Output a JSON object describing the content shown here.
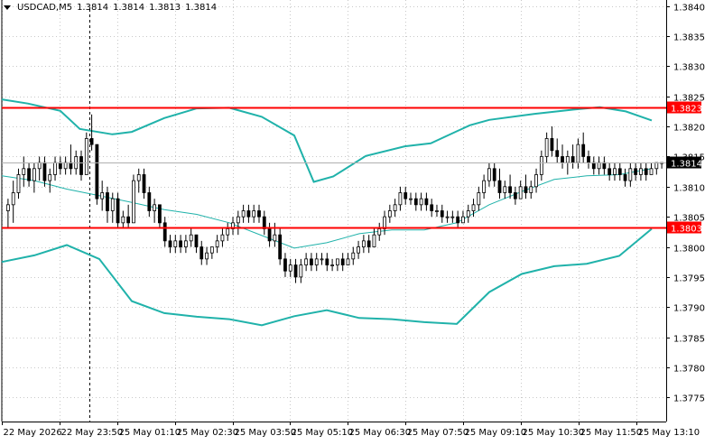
{
  "header": {
    "symbol": "USDCAD,M5",
    "open": "1.3814",
    "high": "1.3814",
    "low": "1.3813",
    "close": "1.3814"
  },
  "colors": {
    "background": "#ffffff",
    "grid": "#c8c8c8",
    "candle": "#000000",
    "bollinger": "#20b2aa",
    "level_line": "#ff0000",
    "price_tag_bg": "#000000",
    "price_tag_fg": "#ffffff"
  },
  "chart_data": {
    "type": "candlestick",
    "symbol": "USDCAD",
    "timeframe": "M5",
    "ylim": [
      1.3771,
      1.3841
    ],
    "y_ticks": [
      "1.3840",
      "1.3835",
      "1.3830",
      "1.3825",
      "1.3820",
      "1.3815",
      "1.3810",
      "1.3805",
      "1.3800",
      "1.3795",
      "1.3790",
      "1.3785",
      "1.3780",
      "1.3775"
    ],
    "x_ticks": [
      "22 May 2026",
      "22 May 23:50",
      "25 May 01:10",
      "25 May 02:30",
      "25 May 03:50",
      "25 May 05:10",
      "25 May 06:30",
      "25 May 07:50",
      "25 May 09:10",
      "25 May 10:30",
      "25 May 11:50",
      "25 May 13:10"
    ],
    "horizontal_levels": [
      {
        "label": "1.3823",
        "value": 1.38232
      },
      {
        "label": "1.3803",
        "value": 1.38032
      }
    ],
    "current_price_label": "1.3814",
    "current_price": 1.3814,
    "session_separator_index": 16,
    "candles": [
      [
        1.3806,
        1.3808,
        1.3803,
        1.3807
      ],
      [
        1.3807,
        1.3811,
        1.3804,
        1.3809
      ],
      [
        1.3809,
        1.3813,
        1.3808,
        1.3812
      ],
      [
        1.3812,
        1.3815,
        1.381,
        1.3813
      ],
      [
        1.3813,
        1.3814,
        1.381,
        1.3811
      ],
      [
        1.3811,
        1.3814,
        1.3809,
        1.3813
      ],
      [
        1.3813,
        1.3815,
        1.3811,
        1.3814
      ],
      [
        1.3814,
        1.3815,
        1.381,
        1.3811
      ],
      [
        1.3811,
        1.3813,
        1.3809,
        1.3812
      ],
      [
        1.3812,
        1.3815,
        1.3811,
        1.3814
      ],
      [
        1.3814,
        1.3815,
        1.3812,
        1.3813
      ],
      [
        1.3813,
        1.3815,
        1.3812,
        1.3814
      ],
      [
        1.3814,
        1.3817,
        1.3812,
        1.3813
      ],
      [
        1.3813,
        1.3816,
        1.3812,
        1.3815
      ],
      [
        1.3815,
        1.3816,
        1.3811,
        1.3812
      ],
      [
        1.3812,
        1.3819,
        1.3812,
        1.3818
      ],
      [
        1.3818,
        1.3822,
        1.3816,
        1.3817
      ],
      [
        1.3817,
        1.3817,
        1.3807,
        1.3808
      ],
      [
        1.3808,
        1.3811,
        1.3806,
        1.3809
      ],
      [
        1.3809,
        1.381,
        1.3804,
        1.3806
      ],
      [
        1.3806,
        1.3809,
        1.3804,
        1.3808
      ],
      [
        1.3808,
        1.3809,
        1.3803,
        1.3804
      ],
      [
        1.3804,
        1.3806,
        1.3803,
        1.3805
      ],
      [
        1.3805,
        1.3807,
        1.3803,
        1.3804
      ],
      [
        1.3804,
        1.3812,
        1.3804,
        1.3811
      ],
      [
        1.3811,
        1.3813,
        1.3809,
        1.3812
      ],
      [
        1.3812,
        1.3813,
        1.3808,
        1.3809
      ],
      [
        1.3809,
        1.381,
        1.3805,
        1.3806
      ],
      [
        1.3806,
        1.3808,
        1.3804,
        1.3807
      ],
      [
        1.3807,
        1.3807,
        1.3803,
        1.3804
      ],
      [
        1.3804,
        1.3805,
        1.38,
        1.3801
      ],
      [
        1.3801,
        1.3802,
        1.3799,
        1.38
      ],
      [
        1.38,
        1.3802,
        1.3799,
        1.3801
      ],
      [
        1.3801,
        1.3802,
        1.3799,
        1.38
      ],
      [
        1.38,
        1.3802,
        1.3799,
        1.3801
      ],
      [
        1.3801,
        1.3803,
        1.38,
        1.3802
      ],
      [
        1.3802,
        1.3802,
        1.3799,
        1.38
      ],
      [
        1.38,
        1.3801,
        1.3797,
        1.3798
      ],
      [
        1.3798,
        1.38,
        1.3797,
        1.3799
      ],
      [
        1.3799,
        1.38,
        1.3798,
        1.38
      ],
      [
        1.38,
        1.3802,
        1.3799,
        1.3801
      ],
      [
        1.3801,
        1.3803,
        1.38,
        1.3802
      ],
      [
        1.3802,
        1.3804,
        1.3801,
        1.3803
      ],
      [
        1.3803,
        1.3805,
        1.3802,
        1.3804
      ],
      [
        1.3804,
        1.3806,
        1.3802,
        1.3805
      ],
      [
        1.3805,
        1.3807,
        1.3804,
        1.3806
      ],
      [
        1.3806,
        1.3807,
        1.3804,
        1.3805
      ],
      [
        1.3805,
        1.3807,
        1.3804,
        1.3806
      ],
      [
        1.3806,
        1.3807,
        1.3804,
        1.3805
      ],
      [
        1.3805,
        1.3806,
        1.3802,
        1.3803
      ],
      [
        1.3803,
        1.3804,
        1.38,
        1.3801
      ],
      [
        1.3801,
        1.3804,
        1.38,
        1.3802
      ],
      [
        1.3802,
        1.3803,
        1.3797,
        1.3798
      ],
      [
        1.3798,
        1.3799,
        1.3795,
        1.3796
      ],
      [
        1.3796,
        1.3798,
        1.3795,
        1.3797
      ],
      [
        1.3797,
        1.3798,
        1.3794,
        1.3795
      ],
      [
        1.3795,
        1.3798,
        1.3794,
        1.3797
      ],
      [
        1.3797,
        1.3799,
        1.3796,
        1.3798
      ],
      [
        1.3798,
        1.3799,
        1.3796,
        1.3797
      ],
      [
        1.3797,
        1.3799,
        1.3796,
        1.3798
      ],
      [
        1.3798,
        1.3799,
        1.3797,
        1.3798
      ],
      [
        1.3798,
        1.3799,
        1.3796,
        1.3797
      ],
      [
        1.3797,
        1.3798,
        1.3796,
        1.3797
      ],
      [
        1.3797,
        1.3798,
        1.3796,
        1.3798
      ],
      [
        1.3798,
        1.3799,
        1.3796,
        1.3797
      ],
      [
        1.3797,
        1.3799,
        1.3797,
        1.3798
      ],
      [
        1.3798,
        1.38,
        1.3797,
        1.3799
      ],
      [
        1.3799,
        1.3801,
        1.3798,
        1.38
      ],
      [
        1.38,
        1.3802,
        1.3799,
        1.3801
      ],
      [
        1.3801,
        1.3802,
        1.3799,
        1.38
      ],
      [
        1.38,
        1.3803,
        1.38,
        1.3802
      ],
      [
        1.3802,
        1.3804,
        1.3801,
        1.3803
      ],
      [
        1.3803,
        1.3806,
        1.3802,
        1.3805
      ],
      [
        1.3805,
        1.3807,
        1.3804,
        1.3806
      ],
      [
        1.3806,
        1.3808,
        1.3805,
        1.3807
      ],
      [
        1.3807,
        1.381,
        1.3806,
        1.3809
      ],
      [
        1.3809,
        1.381,
        1.3807,
        1.3808
      ],
      [
        1.3808,
        1.3809,
        1.3807,
        1.3808
      ],
      [
        1.3808,
        1.3809,
        1.3806,
        1.3807
      ],
      [
        1.3807,
        1.3809,
        1.3806,
        1.3808
      ],
      [
        1.3808,
        1.3809,
        1.3806,
        1.3807
      ],
      [
        1.3807,
        1.3808,
        1.3805,
        1.3806
      ],
      [
        1.3806,
        1.3807,
        1.3805,
        1.3806
      ],
      [
        1.3806,
        1.3807,
        1.3804,
        1.3805
      ],
      [
        1.3805,
        1.3806,
        1.3804,
        1.3805
      ],
      [
        1.3805,
        1.3806,
        1.3804,
        1.3805
      ],
      [
        1.3805,
        1.3806,
        1.3803,
        1.3804
      ],
      [
        1.3804,
        1.3806,
        1.3804,
        1.3805
      ],
      [
        1.3805,
        1.3807,
        1.3804,
        1.3806
      ],
      [
        1.3806,
        1.3808,
        1.3805,
        1.3807
      ],
      [
        1.3807,
        1.381,
        1.3806,
        1.3809
      ],
      [
        1.3809,
        1.3812,
        1.3808,
        1.3811
      ],
      [
        1.3811,
        1.3814,
        1.381,
        1.3813
      ],
      [
        1.3813,
        1.3814,
        1.381,
        1.3811
      ],
      [
        1.3811,
        1.3813,
        1.3808,
        1.3809
      ],
      [
        1.3809,
        1.3811,
        1.3808,
        1.381
      ],
      [
        1.381,
        1.3812,
        1.3808,
        1.3809
      ],
      [
        1.3809,
        1.381,
        1.3807,
        1.3808
      ],
      [
        1.3808,
        1.3811,
        1.3808,
        1.381
      ],
      [
        1.381,
        1.3812,
        1.3808,
        1.3809
      ],
      [
        1.3809,
        1.3811,
        1.3808,
        1.381
      ],
      [
        1.381,
        1.3813,
        1.3809,
        1.3812
      ],
      [
        1.3812,
        1.3816,
        1.3811,
        1.3815
      ],
      [
        1.3815,
        1.3819,
        1.3814,
        1.3818
      ],
      [
        1.3818,
        1.382,
        1.3815,
        1.3816
      ],
      [
        1.3816,
        1.3818,
        1.3814,
        1.3815
      ],
      [
        1.3815,
        1.3817,
        1.3813,
        1.3814
      ],
      [
        1.3814,
        1.3816,
        1.3812,
        1.3815
      ],
      [
        1.3815,
        1.3817,
        1.3813,
        1.3814
      ],
      [
        1.3814,
        1.3818,
        1.3813,
        1.3817
      ],
      [
        1.3817,
        1.3819,
        1.3814,
        1.3815
      ],
      [
        1.3815,
        1.3816,
        1.3813,
        1.3814
      ],
      [
        1.3814,
        1.3815,
        1.3812,
        1.3813
      ],
      [
        1.3813,
        1.3815,
        1.3812,
        1.3814
      ],
      [
        1.3814,
        1.3815,
        1.3812,
        1.3813
      ],
      [
        1.3813,
        1.3814,
        1.3811,
        1.3812
      ],
      [
        1.3812,
        1.3814,
        1.3811,
        1.3813
      ],
      [
        1.3813,
        1.3814,
        1.3811,
        1.3812
      ],
      [
        1.3812,
        1.3813,
        1.381,
        1.3811
      ],
      [
        1.3811,
        1.3814,
        1.381,
        1.3813
      ],
      [
        1.3813,
        1.3814,
        1.3811,
        1.3812
      ],
      [
        1.3812,
        1.3814,
        1.3811,
        1.3813
      ],
      [
        1.3813,
        1.3814,
        1.3811,
        1.3812
      ],
      [
        1.3812,
        1.3814,
        1.3812,
        1.3813
      ],
      [
        1.3813,
        1.3814,
        1.3812,
        1.3814
      ],
      [
        1.3814,
        1.3814,
        1.3813,
        1.3814
      ]
    ],
    "bollinger": {
      "upper": [
        [
          0,
          1.38245
        ],
        [
          0.04,
          1.38238
        ],
        [
          0.09,
          1.38226
        ],
        [
          0.12,
          1.38196
        ],
        [
          0.17,
          1.38187
        ],
        [
          0.2,
          1.38191
        ],
        [
          0.25,
          1.38214
        ],
        [
          0.3,
          1.3823
        ],
        [
          0.35,
          1.38231
        ],
        [
          0.4,
          1.38216
        ],
        [
          0.45,
          1.38185
        ],
        [
          0.48,
          1.38108
        ],
        [
          0.51,
          1.38117
        ],
        [
          0.56,
          1.38151
        ],
        [
          0.62,
          1.38167
        ],
        [
          0.66,
          1.38172
        ],
        [
          0.72,
          1.38202
        ],
        [
          0.75,
          1.38211
        ],
        [
          0.82,
          1.38221
        ],
        [
          0.88,
          1.38228
        ],
        [
          0.92,
          1.38232
        ],
        [
          0.96,
          1.38225
        ],
        [
          1.0,
          1.3821
        ]
      ],
      "middle": [
        [
          0,
          1.38118
        ],
        [
          0.05,
          1.3811
        ],
        [
          0.1,
          1.38096
        ],
        [
          0.15,
          1.38085
        ],
        [
          0.2,
          1.38074
        ],
        [
          0.25,
          1.38062
        ],
        [
          0.3,
          1.38054
        ],
        [
          0.35,
          1.3804
        ],
        [
          0.4,
          1.38019
        ],
        [
          0.45,
          1.37998
        ],
        [
          0.5,
          1.38007
        ],
        [
          0.55,
          1.38022
        ],
        [
          0.6,
          1.38028
        ],
        [
          0.65,
          1.38028
        ],
        [
          0.7,
          1.3804
        ],
        [
          0.75,
          1.3807
        ],
        [
          0.8,
          1.38092
        ],
        [
          0.85,
          1.38112
        ],
        [
          0.9,
          1.38118
        ],
        [
          0.95,
          1.3812
        ],
        [
          1.0,
          1.3813
        ]
      ],
      "lower": [
        [
          0,
          1.37975
        ],
        [
          0.05,
          1.37986
        ],
        [
          0.1,
          1.38003
        ],
        [
          0.15,
          1.3798
        ],
        [
          0.2,
          1.3791
        ],
        [
          0.25,
          1.3789
        ],
        [
          0.3,
          1.37884
        ],
        [
          0.35,
          1.3788
        ],
        [
          0.4,
          1.3787
        ],
        [
          0.45,
          1.37885
        ],
        [
          0.5,
          1.37895
        ],
        [
          0.55,
          1.37882
        ],
        [
          0.6,
          1.3788
        ],
        [
          0.65,
          1.37875
        ],
        [
          0.7,
          1.37872
        ],
        [
          0.75,
          1.37925
        ],
        [
          0.8,
          1.37955
        ],
        [
          0.85,
          1.37968
        ],
        [
          0.9,
          1.37972
        ],
        [
          0.95,
          1.37985
        ],
        [
          1.0,
          1.3803
        ]
      ]
    }
  }
}
